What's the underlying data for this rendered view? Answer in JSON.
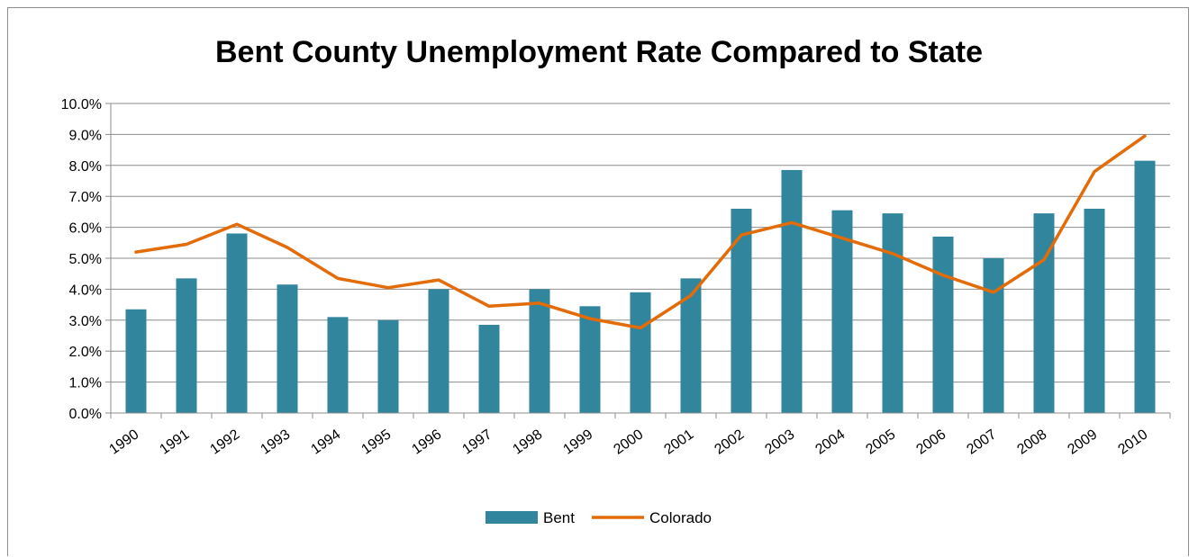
{
  "chart_data": {
    "type": "bar",
    "title": "Bent County Unemployment Rate Compared to State",
    "xlabel": "",
    "ylabel": "",
    "categories": [
      "1990",
      "1991",
      "1992",
      "1993",
      "1994",
      "1995",
      "1996",
      "1997",
      "1998",
      "1999",
      "2000",
      "2001",
      "2002",
      "2003",
      "2004",
      "2005",
      "2006",
      "2007",
      "2008",
      "2009",
      "2010"
    ],
    "series": [
      {
        "name": "Bent",
        "type": "bar",
        "color": "#31859c",
        "values": [
          3.35,
          4.35,
          5.8,
          4.15,
          3.1,
          3.0,
          4.0,
          2.85,
          4.0,
          3.45,
          3.9,
          4.35,
          6.6,
          7.85,
          6.55,
          6.45,
          5.7,
          5.0,
          6.45,
          6.6,
          8.15
        ]
      },
      {
        "name": "Colorado",
        "type": "line",
        "color": "#e36c09",
        "values": [
          5.2,
          5.45,
          6.1,
          5.35,
          4.35,
          4.05,
          4.3,
          3.45,
          3.55,
          3.05,
          2.75,
          3.8,
          5.75,
          6.15,
          5.65,
          5.15,
          4.45,
          3.9,
          4.95,
          7.8,
          8.95
        ]
      }
    ],
    "ylim": [
      0,
      10
    ],
    "yticks": [
      "0.0%",
      "1.0%",
      "2.0%",
      "3.0%",
      "4.0%",
      "5.0%",
      "6.0%",
      "7.0%",
      "8.0%",
      "9.0%",
      "10.0%"
    ],
    "grid": true,
    "legend_position": "bottom"
  }
}
